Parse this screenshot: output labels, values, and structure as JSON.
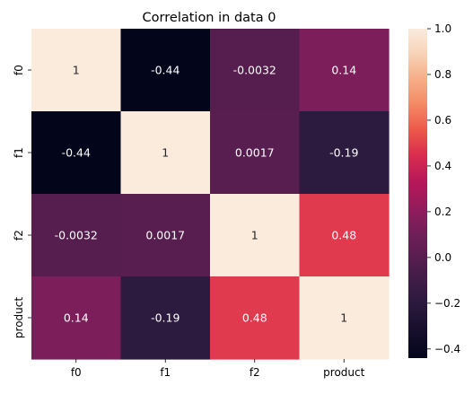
{
  "chart_data": {
    "type": "heatmap",
    "title": "Correlation in data 0",
    "xlabel": "",
    "ylabel": "",
    "x_categories": [
      "f0",
      "f1",
      "f2",
      "product"
    ],
    "y_categories": [
      "f0",
      "f1",
      "f2",
      "product"
    ],
    "values": [
      [
        1,
        -0.44,
        -0.0032,
        0.14
      ],
      [
        -0.44,
        1,
        0.0017,
        -0.19
      ],
      [
        -0.0032,
        0.0017,
        1,
        0.48
      ],
      [
        0.14,
        -0.19,
        0.48,
        1
      ]
    ],
    "value_labels": [
      [
        "1",
        "-0.44",
        "-0.0032",
        "0.14"
      ],
      [
        "-0.44",
        "1",
        "0.0017",
        "-0.19"
      ],
      [
        "-0.0032",
        "0.0017",
        "1",
        "0.48"
      ],
      [
        "0.14",
        "-0.19",
        "0.48",
        "1"
      ]
    ],
    "colorbar": {
      "range": [
        -0.44,
        1
      ],
      "ticks": [
        1.0,
        0.8,
        0.6,
        0.4,
        0.2,
        0.0,
        -0.2,
        -0.4
      ],
      "tick_labels": [
        "1.0",
        "0.8",
        "0.6",
        "0.4",
        "0.2",
        "0.0",
        "−0.2",
        "−0.4"
      ],
      "colormap": "rocket"
    },
    "annotation_color_light": "#ffffff",
    "annotation_color_dark": "#262626"
  }
}
